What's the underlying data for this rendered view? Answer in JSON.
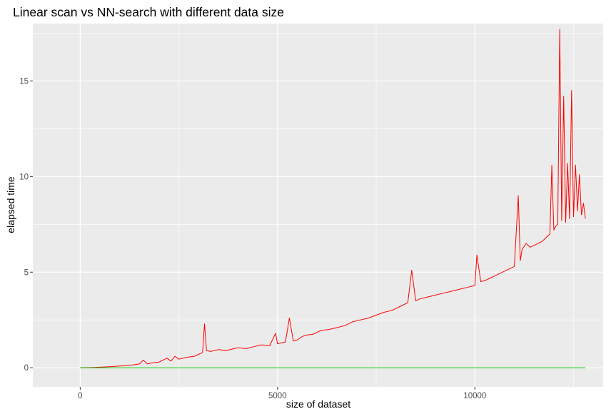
{
  "chart_data": {
    "type": "line",
    "title": "Linear scan vs NN-search with different data size",
    "xlabel": "size of dataset",
    "ylabel": "elapsed time",
    "xlim": [
      -1200,
      13250
    ],
    "ylim": [
      -1.0,
      18.0
    ],
    "x_ticks": [
      0,
      5000,
      10000
    ],
    "x_tick_labels": [
      "0",
      "5000",
      "10000"
    ],
    "y_ticks": [
      0,
      5,
      10,
      15
    ],
    "y_tick_labels": [
      "0",
      "5",
      "10",
      "15"
    ],
    "grid": true,
    "legend": "none",
    "series": [
      {
        "color": "#ff0000",
        "x": [
          0,
          300,
          500,
          700,
          900,
          1100,
          1300,
          1500,
          1600,
          1700,
          1800,
          2000,
          2200,
          2300,
          2400,
          2500,
          2700,
          2900,
          3000,
          3100,
          3150,
          3200,
          3300,
          3500,
          3700,
          3900,
          4000,
          4200,
          4400,
          4600,
          4800,
          4950,
          5000,
          5100,
          5200,
          5300,
          5400,
          5500,
          5600,
          5700,
          5900,
          6100,
          6300,
          6500,
          6700,
          6900,
          7100,
          7300,
          7500,
          7700,
          7900,
          8100,
          8300,
          8400,
          8500,
          8600,
          8800,
          9000,
          9200,
          9400,
          9600,
          9800,
          10000,
          10050,
          10150,
          10300,
          10500,
          10700,
          10900,
          11000,
          11100,
          11150,
          11200,
          11300,
          11400,
          11500,
          11600,
          11700,
          11800,
          11900,
          11950,
          12000,
          12050,
          12100,
          12150,
          12200,
          12250,
          12300,
          12350,
          12400,
          12450,
          12500,
          12550,
          12600,
          12650,
          12700,
          12750,
          12800
        ],
        "y": [
          0.0,
          0.01,
          0.03,
          0.05,
          0.08,
          0.1,
          0.14,
          0.2,
          0.4,
          0.2,
          0.25,
          0.3,
          0.5,
          0.35,
          0.6,
          0.45,
          0.55,
          0.6,
          0.7,
          0.8,
          2.3,
          0.9,
          0.85,
          0.95,
          0.9,
          1.0,
          1.05,
          1.0,
          1.1,
          1.2,
          1.15,
          1.8,
          1.25,
          1.3,
          1.35,
          2.6,
          1.4,
          1.45,
          1.6,
          1.7,
          1.75,
          1.95,
          2.0,
          2.1,
          2.2,
          2.4,
          2.5,
          2.6,
          2.75,
          2.9,
          3.0,
          3.2,
          3.4,
          5.1,
          3.5,
          3.6,
          3.7,
          3.8,
          3.9,
          4.0,
          4.1,
          4.2,
          4.3,
          5.9,
          4.5,
          4.6,
          4.8,
          5.0,
          5.2,
          5.3,
          9.0,
          5.6,
          6.2,
          6.5,
          6.3,
          6.4,
          6.5,
          6.6,
          6.8,
          7.0,
          10.6,
          7.2,
          7.4,
          7.5,
          17.7,
          7.7,
          14.2,
          7.6,
          10.7,
          7.8,
          14.5,
          7.9,
          10.6,
          8.2,
          10.1,
          8.0,
          8.6,
          7.8
        ]
      },
      {
        "color": "#00cc00",
        "x": [
          0,
          2000,
          4000,
          6000,
          8000,
          10000,
          12000,
          12800
        ],
        "y": [
          0,
          0,
          0,
          0,
          0,
          0,
          0,
          0
        ]
      }
    ]
  }
}
